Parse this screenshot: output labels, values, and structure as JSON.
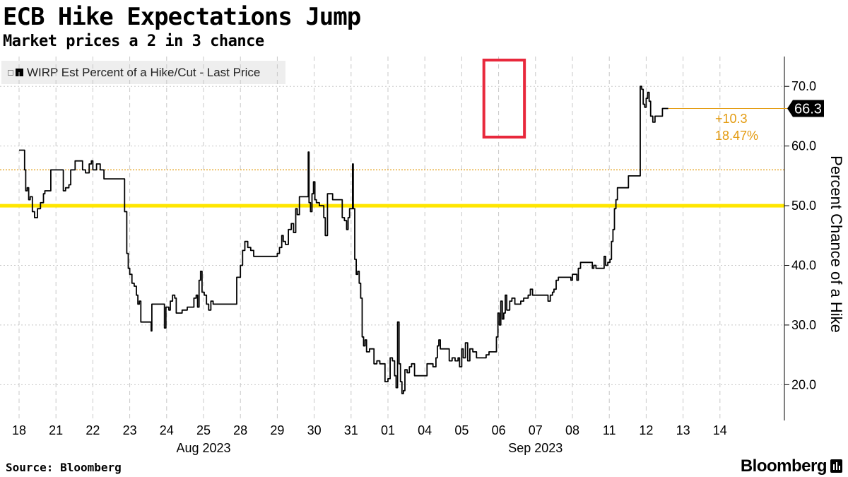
{
  "header": {
    "title": "ECB Hike Expectations Jump",
    "subtitle": "Market prices a 2 in 3 chance"
  },
  "legend": {
    "label": "WIRP Est Percent of a Hike/Cut - Last Price"
  },
  "footer": {
    "source": "Source: Bloomberg",
    "brand": "Bloomberg"
  },
  "chart_data": {
    "type": "line",
    "ylabel": "Percent Chance of a Hike",
    "ylim": [
      14,
      75
    ],
    "yticks": [
      "20.0",
      "30.0",
      "40.0",
      "50.0",
      "60.0",
      "70.0"
    ],
    "xticks": [
      "18",
      "21",
      "22",
      "23",
      "24",
      "25",
      "28",
      "29",
      "30",
      "31",
      "01",
      "04",
      "05",
      "06",
      "07",
      "08",
      "11",
      "12",
      "13",
      "14"
    ],
    "month_labels": [
      {
        "label": "Aug 2023",
        "at": "25"
      },
      {
        "label": "Sep 2023",
        "at": "07"
      }
    ],
    "grid": true,
    "legend_position": "top-left",
    "reference_lines": [
      {
        "value": 50,
        "color": "#ffe600",
        "style": "solid"
      },
      {
        "value": 56,
        "color": "#e39a0e",
        "style": "dotted"
      }
    ],
    "last_price": "66.3",
    "change": {
      "abs": "+10.3",
      "pct": "18.47%"
    },
    "highlight": {
      "from": 12.6,
      "to": 13.7,
      "color": "#e8283c"
    },
    "colors": {
      "line": "#000000",
      "accent": "#e39a0e",
      "highlight": "#e8283c",
      "yellow": "#ffe600"
    },
    "series": [
      {
        "points": [
          [
            0.0,
            59.3
          ],
          [
            0.12,
            59.3
          ],
          [
            0.15,
            56.0
          ],
          [
            0.18,
            52.5
          ],
          [
            0.22,
            53.0
          ],
          [
            0.26,
            51.0
          ],
          [
            0.3,
            51.5
          ],
          [
            0.36,
            49.0
          ],
          [
            0.42,
            48.0
          ],
          [
            0.5,
            49.5
          ],
          [
            0.58,
            50.5
          ],
          [
            0.66,
            52.0
          ],
          [
            0.7,
            52.5
          ],
          [
            0.84,
            52.5
          ],
          [
            0.86,
            56.0
          ],
          [
            1.0,
            56.0
          ],
          [
            1.1,
            56.0
          ],
          [
            1.2,
            52.5
          ],
          [
            1.26,
            53.0
          ],
          [
            1.35,
            53.5
          ],
          [
            1.4,
            56.0
          ],
          [
            1.46,
            56.0
          ],
          [
            1.52,
            57.5
          ],
          [
            1.62,
            57.5
          ],
          [
            1.72,
            56.0
          ],
          [
            1.8,
            55.5
          ],
          [
            1.9,
            57.0
          ],
          [
            1.96,
            57.5
          ],
          [
            2.0,
            56.0
          ],
          [
            2.1,
            57.0
          ],
          [
            2.2,
            56.0
          ],
          [
            2.26,
            56.0
          ],
          [
            2.3,
            54.5
          ],
          [
            2.6,
            54.5
          ],
          [
            2.84,
            54.5
          ],
          [
            2.86,
            49.0
          ],
          [
            2.92,
            42.0
          ],
          [
            2.96,
            39.5
          ],
          [
            3.0,
            38.5
          ],
          [
            3.06,
            37.0
          ],
          [
            3.12,
            36.5
          ],
          [
            3.18,
            35.0
          ],
          [
            3.22,
            33.5
          ],
          [
            3.26,
            34.0
          ],
          [
            3.3,
            30.5
          ],
          [
            3.55,
            30.5
          ],
          [
            3.58,
            29.0
          ],
          [
            3.6,
            33.5
          ],
          [
            3.9,
            33.5
          ],
          [
            3.94,
            29.5
          ],
          [
            3.98,
            33.0
          ],
          [
            4.06,
            32.5
          ],
          [
            4.1,
            34.0
          ],
          [
            4.16,
            35.0
          ],
          [
            4.22,
            34.5
          ],
          [
            4.26,
            32.0
          ],
          [
            4.34,
            32.0
          ],
          [
            4.42,
            32.5
          ],
          [
            4.56,
            33.0
          ],
          [
            4.7,
            33.0
          ],
          [
            4.74,
            34.5
          ],
          [
            4.8,
            35.0
          ],
          [
            4.84,
            33.0
          ],
          [
            4.88,
            37.5
          ],
          [
            4.92,
            39.0
          ],
          [
            4.96,
            35.5
          ],
          [
            5.02,
            35.0
          ],
          [
            5.08,
            33.5
          ],
          [
            5.14,
            32.5
          ],
          [
            5.2,
            34.0
          ],
          [
            5.26,
            33.5
          ],
          [
            5.52,
            33.5
          ],
          [
            5.6,
            33.5
          ],
          [
            5.86,
            33.5
          ],
          [
            5.9,
            38.0
          ],
          [
            6.0,
            40.0
          ],
          [
            6.06,
            42.5
          ],
          [
            6.12,
            44.0
          ],
          [
            6.2,
            43.0
          ],
          [
            6.28,
            42.5
          ],
          [
            6.36,
            41.5
          ],
          [
            6.6,
            41.5
          ],
          [
            6.96,
            41.5
          ],
          [
            7.0,
            42.0
          ],
          [
            7.06,
            43.0
          ],
          [
            7.12,
            45.0
          ],
          [
            7.16,
            44.0
          ],
          [
            7.22,
            43.5
          ],
          [
            7.3,
            46.0
          ],
          [
            7.38,
            47.0
          ],
          [
            7.44,
            45.5
          ],
          [
            7.5,
            49.5
          ],
          [
            7.54,
            48.5
          ],
          [
            7.6,
            51.5
          ],
          [
            7.8,
            51.5
          ],
          [
            7.84,
            59.0
          ],
          [
            7.86,
            50.5
          ],
          [
            7.9,
            49.0
          ],
          [
            7.94,
            52.0
          ],
          [
            7.98,
            54.0
          ],
          [
            8.02,
            51.0
          ],
          [
            8.06,
            50.5
          ],
          [
            8.14,
            50.0
          ],
          [
            8.2,
            50.0
          ],
          [
            8.26,
            48.0
          ],
          [
            8.3,
            45.0
          ],
          [
            8.36,
            52.0
          ],
          [
            8.42,
            52.0
          ],
          [
            8.5,
            51.0
          ],
          [
            8.72,
            51.0
          ],
          [
            8.76,
            48.0
          ],
          [
            8.82,
            47.5
          ],
          [
            8.88,
            46.0
          ],
          [
            8.92,
            48.0
          ],
          [
            8.96,
            49.5
          ],
          [
            9.0,
            49.5
          ],
          [
            9.04,
            57.0
          ],
          [
            9.06,
            49.5
          ],
          [
            9.1,
            41.0
          ],
          [
            9.14,
            38.5
          ],
          [
            9.18,
            39.0
          ],
          [
            9.22,
            37.0
          ],
          [
            9.26,
            34.5
          ],
          [
            9.3,
            28.0
          ],
          [
            9.34,
            26.5
          ],
          [
            9.38,
            27.5
          ],
          [
            9.42,
            25.5
          ],
          [
            9.5,
            26.0
          ],
          [
            9.56,
            26.0
          ],
          [
            9.62,
            23.5
          ],
          [
            9.7,
            24.0
          ],
          [
            9.78,
            23.5
          ],
          [
            9.86,
            23.5
          ],
          [
            9.92,
            20.5
          ],
          [
            10.0,
            21.0
          ],
          [
            10.06,
            24.5
          ],
          [
            10.12,
            24.0
          ],
          [
            10.18,
            21.5
          ],
          [
            10.22,
            19.5
          ],
          [
            10.26,
            30.5
          ],
          [
            10.3,
            23.5
          ],
          [
            10.34,
            20.5
          ],
          [
            10.38,
            18.5
          ],
          [
            10.42,
            19.0
          ],
          [
            10.46,
            22.5
          ],
          [
            10.52,
            22.0
          ],
          [
            10.58,
            23.0
          ],
          [
            10.64,
            23.5
          ],
          [
            10.72,
            21.5
          ],
          [
            11.0,
            21.5
          ],
          [
            11.06,
            23.5
          ],
          [
            11.14,
            23.5
          ],
          [
            11.22,
            23.0
          ],
          [
            11.3,
            24.5
          ],
          [
            11.34,
            26.5
          ],
          [
            11.38,
            27.5
          ],
          [
            11.42,
            26.0
          ],
          [
            11.6,
            26.0
          ],
          [
            11.66,
            24.0
          ],
          [
            11.74,
            24.5
          ],
          [
            11.82,
            24.0
          ],
          [
            11.9,
            24.5
          ],
          [
            11.94,
            23.0
          ],
          [
            12.0,
            26.0
          ],
          [
            12.04,
            24.5
          ],
          [
            12.1,
            27.0
          ],
          [
            12.16,
            24.0
          ],
          [
            12.22,
            26.0
          ],
          [
            12.3,
            25.5
          ],
          [
            12.4,
            24.5
          ],
          [
            12.6,
            24.5
          ],
          [
            12.66,
            25.0
          ],
          [
            12.74,
            25.5
          ],
          [
            12.9,
            25.5
          ],
          [
            12.94,
            28.0
          ],
          [
            12.98,
            32.0
          ],
          [
            13.02,
            30.0
          ],
          [
            13.06,
            34.0
          ],
          [
            13.1,
            31.0
          ],
          [
            13.14,
            32.0
          ],
          [
            13.18,
            35.0
          ],
          [
            13.22,
            32.5
          ],
          [
            13.3,
            34.0
          ],
          [
            13.36,
            34.5
          ],
          [
            13.44,
            33.5
          ],
          [
            13.6,
            34.0
          ],
          [
            13.68,
            34.5
          ],
          [
            13.8,
            35.0
          ],
          [
            13.86,
            36.0
          ],
          [
            13.92,
            35.0
          ],
          [
            14.0,
            35.0
          ],
          [
            14.3,
            35.0
          ],
          [
            14.34,
            34.0
          ],
          [
            14.4,
            35.0
          ],
          [
            14.46,
            35.5
          ],
          [
            14.5,
            36.0
          ],
          [
            14.56,
            37.5
          ],
          [
            14.62,
            38.0
          ],
          [
            14.8,
            38.0
          ],
          [
            14.9,
            38.0
          ],
          [
            14.96,
            37.5
          ],
          [
            15.0,
            38.5
          ],
          [
            15.08,
            38.5
          ],
          [
            15.12,
            37.5
          ],
          [
            15.16,
            39.5
          ],
          [
            15.22,
            40.5
          ],
          [
            15.5,
            40.5
          ],
          [
            15.54,
            39.5
          ],
          [
            15.58,
            40.0
          ],
          [
            15.64,
            39.5
          ],
          [
            15.82,
            39.5
          ],
          [
            15.86,
            41.5
          ],
          [
            15.9,
            40.0
          ],
          [
            15.96,
            40.5
          ],
          [
            16.02,
            41.0
          ],
          [
            16.06,
            44.0
          ],
          [
            16.1,
            46.0
          ],
          [
            16.14,
            49.5
          ],
          [
            16.18,
            51.0
          ],
          [
            16.22,
            53.0
          ],
          [
            16.5,
            53.0
          ],
          [
            16.52,
            55.0
          ],
          [
            16.78,
            55.0
          ],
          [
            16.84,
            70.0
          ],
          [
            16.88,
            69.5
          ],
          [
            16.92,
            67.0
          ],
          [
            16.96,
            66.5
          ],
          [
            17.0,
            68.0
          ],
          [
            17.04,
            69.0
          ],
          [
            17.08,
            67.5
          ],
          [
            17.12,
            65.0
          ],
          [
            17.18,
            64.0
          ],
          [
            17.24,
            65.0
          ],
          [
            17.4,
            65.0
          ],
          [
            17.44,
            66.3
          ],
          [
            17.6,
            66.3
          ]
        ]
      }
    ]
  }
}
